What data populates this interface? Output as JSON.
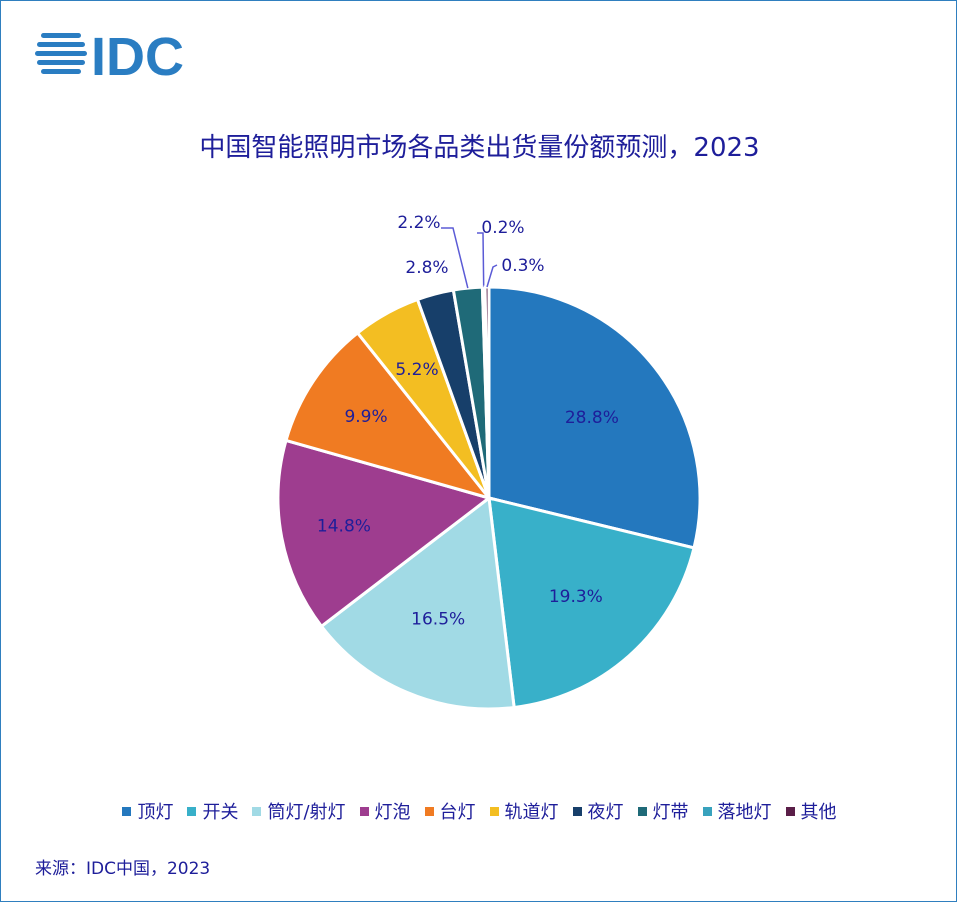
{
  "logo": {
    "text": "IDC",
    "color": "#2a7dc2"
  },
  "chart_data": {
    "type": "pie",
    "title": "中国智能照明市场各品类出货量份额预测，2023",
    "categories": [
      "顶灯",
      "开关",
      "筒灯/射灯",
      "灯泡",
      "台灯",
      "轨道灯",
      "夜灯",
      "灯带",
      "落地灯",
      "其他"
    ],
    "values": [
      28.8,
      19.3,
      16.5,
      14.8,
      9.9,
      5.2,
      2.8,
      2.2,
      0.2,
      0.3
    ],
    "labels": [
      "28.8%",
      "19.3%",
      "16.5%",
      "14.8%",
      "9.9%",
      "5.2%",
      "2.8%",
      "2.2%",
      "0.2%",
      "0.3%"
    ],
    "colors": [
      "#2478be",
      "#38b0c9",
      "#a1dae5",
      "#9e3d8f",
      "#f07b22",
      "#f3be22",
      "#173f6a",
      "#1f6a78",
      "#38a2bd",
      "#5a1e48"
    ],
    "legend_position": "bottom",
    "start": "12 o'clock, clockwise"
  },
  "source": "来源：IDC中国，2023"
}
